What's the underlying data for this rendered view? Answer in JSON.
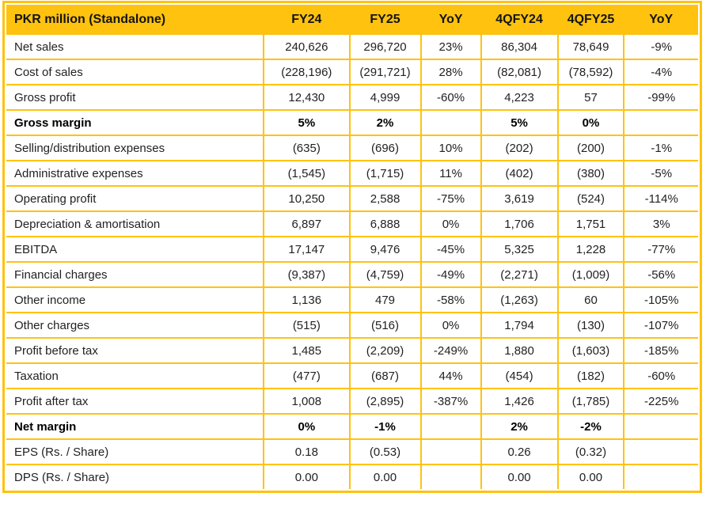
{
  "colors": {
    "accent": "#FFC20E",
    "header_text": "#141414",
    "body_text": "#222222"
  },
  "table": {
    "corner_header": "PKR million (Standalone)",
    "columns": [
      "FY24",
      "FY25",
      "YoY",
      "4QFY24",
      "4QFY25",
      "YoY"
    ],
    "rows": [
      {
        "label": "Net sales",
        "bold": false,
        "values": [
          "240,626",
          "296,720",
          "23%",
          "86,304",
          "78,649",
          "-9%"
        ]
      },
      {
        "label": "Cost of sales",
        "bold": false,
        "values": [
          "(228,196)",
          "(291,721)",
          "28%",
          "(82,081)",
          "(78,592)",
          "-4%"
        ]
      },
      {
        "label": "Gross profit",
        "bold": false,
        "values": [
          "12,430",
          "4,999",
          "-60%",
          "4,223",
          "57",
          "-99%"
        ]
      },
      {
        "label": "Gross margin",
        "bold": true,
        "values": [
          "5%",
          "2%",
          "",
          "5%",
          "0%",
          ""
        ]
      },
      {
        "label": "Selling/distribution expenses",
        "bold": false,
        "values": [
          "(635)",
          "(696)",
          "10%",
          "(202)",
          "(200)",
          "-1%"
        ]
      },
      {
        "label": "Administrative expenses",
        "bold": false,
        "values": [
          "(1,545)",
          "(1,715)",
          "11%",
          "(402)",
          "(380)",
          "-5%"
        ]
      },
      {
        "label": "Operating profit",
        "bold": false,
        "values": [
          "10,250",
          "2,588",
          "-75%",
          "3,619",
          "(524)",
          "-114%"
        ]
      },
      {
        "label": "Depreciation & amortisation",
        "bold": false,
        "values": [
          "6,897",
          "6,888",
          "0%",
          "1,706",
          "1,751",
          "3%"
        ]
      },
      {
        "label": "EBITDA",
        "bold": false,
        "values": [
          "17,147",
          "9,476",
          "-45%",
          "5,325",
          "1,228",
          "-77%"
        ]
      },
      {
        "label": "Financial charges",
        "bold": false,
        "values": [
          "(9,387)",
          "(4,759)",
          "-49%",
          "(2,271)",
          "(1,009)",
          "-56%"
        ]
      },
      {
        "label": "Other income",
        "bold": false,
        "values": [
          "1,136",
          "479",
          "-58%",
          "(1,263)",
          "60",
          "-105%"
        ]
      },
      {
        "label": "Other charges",
        "bold": false,
        "values": [
          "(515)",
          "(516)",
          "0%",
          "1,794",
          "(130)",
          "-107%"
        ]
      },
      {
        "label": "Profit before tax",
        "bold": false,
        "values": [
          "1,485",
          "(2,209)",
          "-249%",
          "1,880",
          "(1,603)",
          "-185%"
        ]
      },
      {
        "label": "Taxation",
        "bold": false,
        "values": [
          "(477)",
          "(687)",
          "44%",
          "(454)",
          "(182)",
          "-60%"
        ]
      },
      {
        "label": "Profit after tax",
        "bold": false,
        "values": [
          "1,008",
          "(2,895)",
          "-387%",
          "1,426",
          "(1,785)",
          "-225%"
        ]
      },
      {
        "label": "Net margin",
        "bold": true,
        "values": [
          "0%",
          "-1%",
          "",
          "2%",
          "-2%",
          ""
        ]
      },
      {
        "label": "EPS (Rs. / Share)",
        "bold": false,
        "values": [
          "0.18",
          "(0.53)",
          "",
          "0.26",
          "(0.32)",
          ""
        ]
      },
      {
        "label": "DPS (Rs. / Share)",
        "bold": false,
        "values": [
          "0.00",
          "0.00",
          "",
          "0.00",
          "0.00",
          ""
        ]
      }
    ]
  },
  "chart_data": {
    "type": "table",
    "title": "PKR million (Standalone)",
    "columns": [
      "FY24",
      "FY25",
      "YoY",
      "4QFY24",
      "4QFY25",
      "YoY"
    ],
    "rows": [
      [
        "Net sales",
        "240,626",
        "296,720",
        "23%",
        "86,304",
        "78,649",
        "-9%"
      ],
      [
        "Cost of sales",
        "(228,196)",
        "(291,721)",
        "28%",
        "(82,081)",
        "(78,592)",
        "-4%"
      ],
      [
        "Gross profit",
        "12,430",
        "4,999",
        "-60%",
        "4,223",
        "57",
        "-99%"
      ],
      [
        "Gross margin",
        "5%",
        "2%",
        "",
        "5%",
        "0%",
        ""
      ],
      [
        "Selling/distribution expenses",
        "(635)",
        "(696)",
        "10%",
        "(202)",
        "(200)",
        "-1%"
      ],
      [
        "Administrative expenses",
        "(1,545)",
        "(1,715)",
        "11%",
        "(402)",
        "(380)",
        "-5%"
      ],
      [
        "Operating profit",
        "10,250",
        "2,588",
        "-75%",
        "3,619",
        "(524)",
        "-114%"
      ],
      [
        "Depreciation & amortisation",
        "6,897",
        "6,888",
        "0%",
        "1,706",
        "1,751",
        "3%"
      ],
      [
        "EBITDA",
        "17,147",
        "9,476",
        "-45%",
        "5,325",
        "1,228",
        "-77%"
      ],
      [
        "Financial charges",
        "(9,387)",
        "(4,759)",
        "-49%",
        "(2,271)",
        "(1,009)",
        "-56%"
      ],
      [
        "Other income",
        "1,136",
        "479",
        "-58%",
        "(1,263)",
        "60",
        "-105%"
      ],
      [
        "Other charges",
        "(515)",
        "(516)",
        "0%",
        "1,794",
        "(130)",
        "-107%"
      ],
      [
        "Profit before tax",
        "1,485",
        "(2,209)",
        "-249%",
        "1,880",
        "(1,603)",
        "-185%"
      ],
      [
        "Taxation",
        "(477)",
        "(687)",
        "44%",
        "(454)",
        "(182)",
        "-60%"
      ],
      [
        "Profit after tax",
        "1,008",
        "(2,895)",
        "-387%",
        "1,426",
        "(1,785)",
        "-225%"
      ],
      [
        "Net margin",
        "0%",
        "-1%",
        "",
        "2%",
        "-2%",
        ""
      ],
      [
        "EPS (Rs. / Share)",
        "0.18",
        "(0.53)",
        "",
        "0.26",
        "(0.32)",
        ""
      ],
      [
        "DPS (Rs. / Share)",
        "0.00",
        "0.00",
        "",
        "0.00",
        "0.00",
        ""
      ]
    ]
  }
}
